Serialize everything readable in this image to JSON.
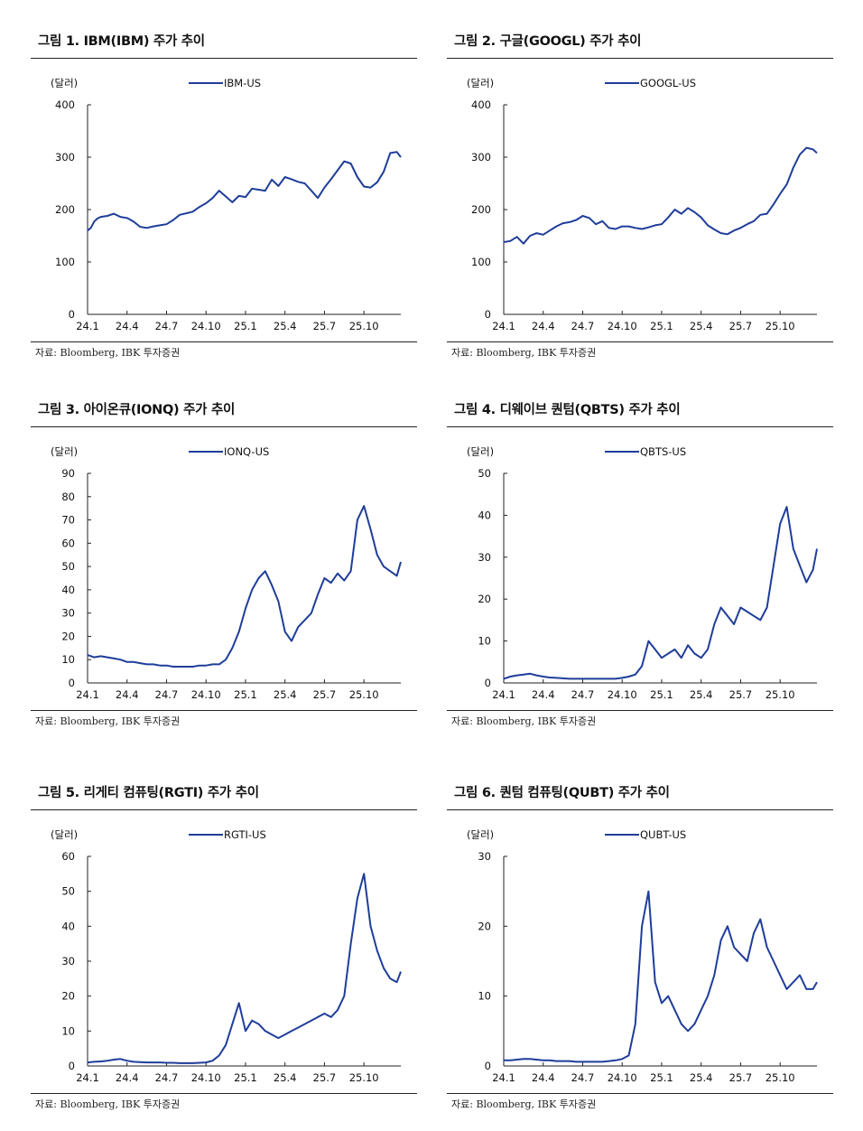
{
  "source_note": "자료: Bloomberg, IBK 투자증권",
  "unit_label": "(달러)",
  "chart_data": [
    {
      "type": "line",
      "title": "그림 1. IBM(IBM) 주가 추이",
      "series": [
        {
          "name": "IBM-US",
          "color": "#1f3d99",
          "x": [
            0,
            0.25,
            0.5,
            0.75,
            1,
            1.5,
            2,
            2.5,
            3,
            3.5,
            4,
            4.5,
            5,
            5.5,
            6,
            6.5,
            7,
            7.5,
            8,
            8.5,
            9,
            9.5,
            10,
            10.5,
            11,
            11.5,
            12,
            12.5,
            13,
            13.5,
            14,
            14.5,
            15,
            15.5,
            16,
            16.5,
            17,
            17.5,
            18,
            18.5,
            19,
            19.5,
            20,
            20.5,
            21,
            21.5,
            22,
            22.5,
            23,
            23.5,
            23.8
          ],
          "values": [
            160,
            165,
            177,
            183,
            186,
            188,
            192,
            186,
            184,
            177,
            167,
            165,
            168,
            170,
            172,
            180,
            190,
            193,
            196,
            205,
            212,
            222,
            236,
            225,
            214,
            226,
            224,
            240,
            238,
            236,
            257,
            245,
            262,
            258,
            253,
            250,
            236,
            222,
            242,
            258,
            275,
            292,
            288,
            262,
            244,
            242,
            252,
            272,
            308,
            310,
            300
          ]
        }
      ],
      "xticks": [
        "24.1",
        "24.4",
        "24.7",
        "24.10",
        "25.1",
        "25.4",
        "25.7",
        "25.10"
      ],
      "xtick_positions": [
        0,
        3,
        6,
        9,
        12,
        15,
        18,
        21
      ],
      "yticks": [
        0,
        100,
        200,
        300,
        400
      ],
      "ylim": [
        0,
        400
      ],
      "xlim": [
        0,
        23.8
      ]
    },
    {
      "type": "line",
      "title": "그림 2. 구글(GOOGL) 주가 추이",
      "series": [
        {
          "name": "GOOGL-US",
          "color": "#1f3d99",
          "x": [
            0,
            0.5,
            1,
            1.5,
            2,
            2.5,
            3,
            3.5,
            4,
            4.5,
            5,
            5.5,
            6,
            6.5,
            7,
            7.5,
            8,
            8.5,
            9,
            9.5,
            10,
            10.5,
            11,
            11.5,
            12,
            12.5,
            13,
            13.5,
            14,
            14.5,
            15,
            15.5,
            16,
            16.5,
            17,
            17.5,
            18,
            18.5,
            19,
            19.5,
            20,
            20.5,
            21,
            21.5,
            22,
            22.5,
            23,
            23.5,
            23.8
          ],
          "values": [
            138,
            140,
            148,
            135,
            150,
            155,
            152,
            160,
            168,
            174,
            176,
            180,
            188,
            184,
            172,
            178,
            165,
            163,
            168,
            168,
            165,
            163,
            166,
            170,
            172,
            185,
            200,
            192,
            203,
            195,
            185,
            170,
            162,
            155,
            153,
            160,
            165,
            172,
            178,
            190,
            192,
            210,
            230,
            248,
            280,
            305,
            318,
            315,
            308
          ]
        }
      ],
      "xticks": [
        "24.1",
        "24.4",
        "24.7",
        "24.10",
        "25.1",
        "25.4",
        "25.7",
        "25.10"
      ],
      "xtick_positions": [
        0,
        3,
        6,
        9,
        12,
        15,
        18,
        21
      ],
      "yticks": [
        0,
        100,
        200,
        300,
        400
      ],
      "ylim": [
        0,
        400
      ],
      "xlim": [
        0,
        23.8
      ]
    },
    {
      "type": "line",
      "title": "그림 3. 아이온큐(IONQ) 주가 추이",
      "series": [
        {
          "name": "IONQ-US",
          "color": "#1f3d99",
          "x": [
            0,
            0.5,
            1,
            1.5,
            2,
            2.5,
            3,
            3.5,
            4,
            4.5,
            5,
            5.5,
            6,
            6.5,
            7,
            7.5,
            8,
            8.5,
            9,
            9.5,
            10,
            10.5,
            11,
            11.5,
            12,
            12.5,
            13,
            13.5,
            14,
            14.5,
            15,
            15.5,
            16,
            16.5,
            17,
            17.5,
            18,
            18.5,
            19,
            19.5,
            20,
            20.5,
            21,
            21.5,
            22,
            22.5,
            23,
            23.5,
            23.8
          ],
          "values": [
            12,
            11,
            11.5,
            11,
            10.5,
            10,
            9,
            9,
            8.5,
            8,
            8,
            7.5,
            7.5,
            7,
            7,
            7,
            7,
            7.5,
            7.5,
            8,
            8,
            10,
            15,
            22,
            32,
            40,
            45,
            48,
            42,
            35,
            22,
            18,
            24,
            27,
            30,
            38,
            45,
            43,
            47,
            44,
            48,
            70,
            76,
            66,
            55,
            50,
            48,
            46,
            52
          ]
        }
      ],
      "xticks": [
        "24.1",
        "24.4",
        "24.7",
        "24.10",
        "25.1",
        "25.4",
        "25.7",
        "25.10"
      ],
      "xtick_positions": [
        0,
        3,
        6,
        9,
        12,
        15,
        18,
        21
      ],
      "yticks": [
        0,
        10,
        20,
        30,
        40,
        50,
        60,
        70,
        80,
        90
      ],
      "ylim": [
        0,
        90
      ],
      "xlim": [
        0,
        23.8
      ]
    },
    {
      "type": "line",
      "title": "그림 4. 디웨이브 퀀텀(QBTS) 주가 추이",
      "series": [
        {
          "name": "QBTS-US",
          "color": "#1f3d99",
          "x": [
            0,
            0.5,
            1,
            1.5,
            2,
            2.5,
            3,
            3.5,
            4,
            4.5,
            5,
            5.5,
            6,
            6.5,
            7,
            7.5,
            8,
            8.5,
            9,
            9.5,
            10,
            10.5,
            11,
            11.5,
            12,
            12.5,
            13,
            13.5,
            14,
            14.5,
            15,
            15.5,
            16,
            16.5,
            17,
            17.5,
            18,
            18.5,
            19,
            19.5,
            20,
            20.5,
            21,
            21.5,
            22,
            22.5,
            23,
            23.5,
            23.8
          ],
          "values": [
            1,
            1.5,
            1.8,
            2,
            2.2,
            1.8,
            1.5,
            1.3,
            1.2,
            1.1,
            1,
            1,
            1,
            1,
            1,
            1,
            1,
            1,
            1.2,
            1.5,
            2,
            4,
            10,
            8,
            6,
            7,
            8,
            6,
            9,
            7,
            6,
            8,
            14,
            18,
            16,
            14,
            18,
            17,
            16,
            15,
            18,
            28,
            38,
            42,
            32,
            28,
            24,
            27,
            32
          ]
        }
      ],
      "xticks": [
        "24.1",
        "24.4",
        "24.7",
        "24.10",
        "25.1",
        "25.4",
        "25.7",
        "25.10"
      ],
      "xtick_positions": [
        0,
        3,
        6,
        9,
        12,
        15,
        18,
        21
      ],
      "yticks": [
        0,
        10,
        20,
        30,
        40,
        50
      ],
      "ylim": [
        0,
        50
      ],
      "xlim": [
        0,
        23.8
      ]
    },
    {
      "type": "line",
      "title": "그림 5. 리게티 컴퓨팅(RGTI) 주가 추이",
      "series": [
        {
          "name": "RGTI-US",
          "color": "#1f3d99",
          "x": [
            0,
            0.5,
            1,
            1.5,
            2,
            2.5,
            3,
            3.5,
            4,
            4.5,
            5,
            5.5,
            6,
            6.5,
            7,
            7.5,
            8,
            8.5,
            9,
            9.5,
            10,
            10.5,
            11,
            11.5,
            12,
            12.5,
            13,
            13.5,
            14,
            14.5,
            15,
            15.5,
            16,
            16.5,
            17,
            17.5,
            18,
            18.5,
            19,
            19.5,
            20,
            20.5,
            21,
            21.5,
            22,
            22.5,
            23,
            23.5,
            23.8
          ],
          "values": [
            1,
            1.2,
            1.3,
            1.5,
            1.8,
            2,
            1.5,
            1.2,
            1.1,
            1,
            1,
            1,
            0.9,
            0.9,
            0.8,
            0.8,
            0.8,
            0.9,
            1,
            1.5,
            3,
            6,
            12,
            18,
            10,
            13,
            12,
            10,
            9,
            8,
            9,
            10,
            11,
            12,
            13,
            14,
            15,
            14,
            16,
            20,
            35,
            48,
            55,
            40,
            33,
            28,
            25,
            24,
            27
          ]
        }
      ],
      "xticks": [
        "24.1",
        "24.4",
        "24.7",
        "24.10",
        "25.1",
        "25.4",
        "25.7",
        "25.10"
      ],
      "xtick_positions": [
        0,
        3,
        6,
        9,
        12,
        15,
        18,
        21
      ],
      "yticks": [
        0,
        10,
        20,
        30,
        40,
        50,
        60
      ],
      "ylim": [
        0,
        60
      ],
      "xlim": [
        0,
        23.8
      ]
    },
    {
      "type": "line",
      "title": "그림 6. 퀀텀 컴퓨팅(QUBT) 주가 추이",
      "series": [
        {
          "name": "QUBT-US",
          "color": "#1f3d99",
          "x": [
            0,
            0.5,
            1,
            1.5,
            2,
            2.5,
            3,
            3.5,
            4,
            4.5,
            5,
            5.5,
            6,
            6.5,
            7,
            7.5,
            8,
            8.5,
            9,
            9.5,
            10,
            10.5,
            11,
            11.5,
            12,
            12.5,
            13,
            13.5,
            14,
            14.5,
            15,
            15.5,
            16,
            16.5,
            17,
            17.5,
            18,
            18.5,
            19,
            19.5,
            20,
            20.5,
            21,
            21.5,
            22,
            22.5,
            23,
            23.5,
            23.8
          ],
          "values": [
            0.8,
            0.8,
            0.9,
            1,
            1,
            0.9,
            0.8,
            0.8,
            0.7,
            0.7,
            0.7,
            0.6,
            0.6,
            0.6,
            0.6,
            0.6,
            0.7,
            0.8,
            1,
            1.5,
            6,
            20,
            25,
            12,
            9,
            10,
            8,
            6,
            5,
            6,
            8,
            10,
            13,
            18,
            20,
            17,
            16,
            15,
            19,
            21,
            17,
            15,
            13,
            11,
            12,
            13,
            11,
            11,
            12
          ]
        }
      ],
      "xticks": [
        "24.1",
        "24.4",
        "24.7",
        "24.10",
        "25.1",
        "25.4",
        "25.7",
        "25.10"
      ],
      "xtick_positions": [
        0,
        3,
        6,
        9,
        12,
        15,
        18,
        21
      ],
      "yticks": [
        0,
        10,
        20,
        30
      ],
      "ylim": [
        0,
        30
      ],
      "xlim": [
        0,
        23.8
      ]
    }
  ]
}
